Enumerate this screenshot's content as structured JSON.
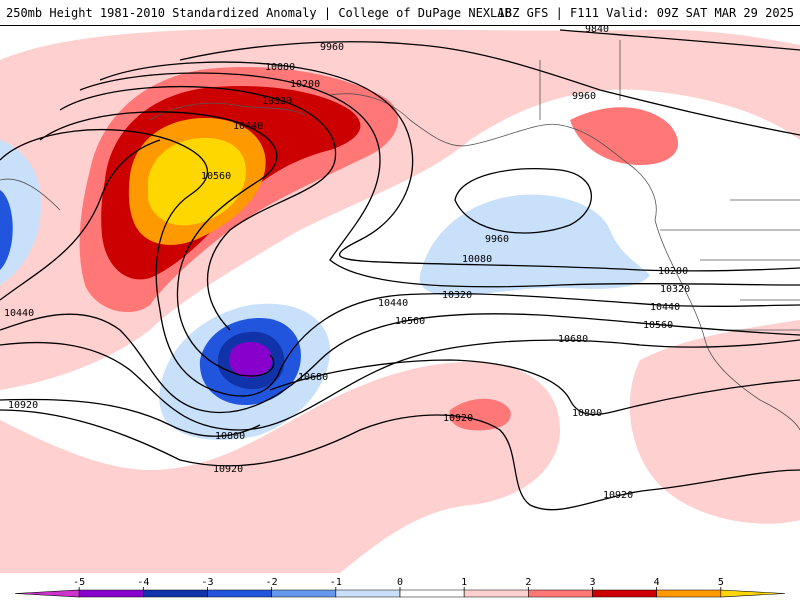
{
  "header": {
    "title_left": "250mb Height 1981-2010 Standardized Anomaly | College of DuPage NEXLAB",
    "title_right": "18Z GFS | F111 Valid: 09Z SAT MAR 29 2025"
  },
  "map": {
    "contour_labels": [
      "9840",
      "9960",
      "9960",
      "9960",
      "10080",
      "10080",
      "10200",
      "10200",
      "10320",
      "10320",
      "10320",
      "10440",
      "10440",
      "10440",
      "10440",
      "10560",
      "10560",
      "10560",
      "10680",
      "10680",
      "10800",
      "10800",
      "10920",
      "10920",
      "10920",
      "10920"
    ]
  },
  "colorbar": {
    "ticks": [
      "-5",
      "-4",
      "-3",
      "-2",
      "-1",
      "0",
      "1",
      "2",
      "3",
      "4",
      "5"
    ],
    "colors": [
      "#cc33cc",
      "#8800cc",
      "#1133aa",
      "#2255dd",
      "#6699ee",
      "#c8e0fa",
      "#ffffff",
      "#ffd0d0",
      "#ff7777",
      "#cc0000",
      "#ff9900",
      "#ffd700"
    ]
  }
}
